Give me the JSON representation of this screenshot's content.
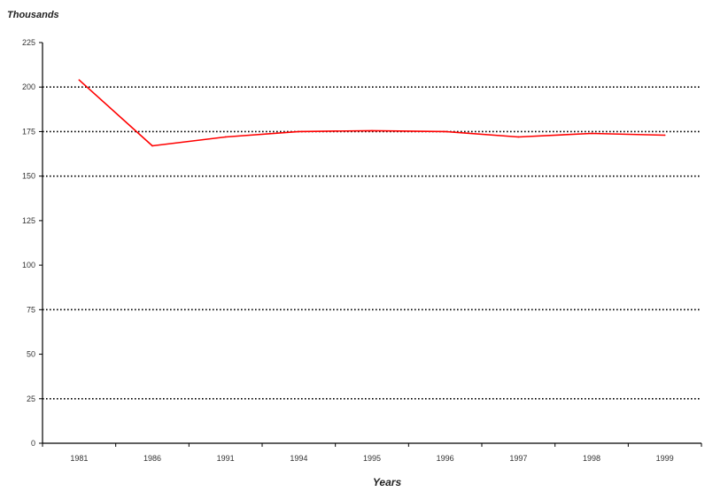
{
  "chart_data": {
    "type": "line",
    "title": "",
    "xlabel": "Years",
    "ylabel": "Thousands",
    "categories": [
      "1981",
      "1986",
      "1991",
      "1994",
      "1995",
      "1996",
      "1997",
      "1998",
      "1999"
    ],
    "series": [
      {
        "name": "",
        "color": "#ff0000",
        "values": [
          204,
          167,
          172,
          175,
          175.5,
          175,
          172,
          174,
          173
        ]
      }
    ],
    "ylim": [
      0,
      225
    ],
    "yticks": [
      "0",
      "25",
      "50",
      "75",
      "100",
      "125",
      "150",
      "175",
      "200",
      "225"
    ],
    "gridlines": [
      25,
      75,
      150,
      175,
      200
    ],
    "grid": "horizontal dotted",
    "legend": "none",
    "colors": {
      "line": "#ff0000",
      "axis": "#000000",
      "grid": "#000000"
    }
  }
}
